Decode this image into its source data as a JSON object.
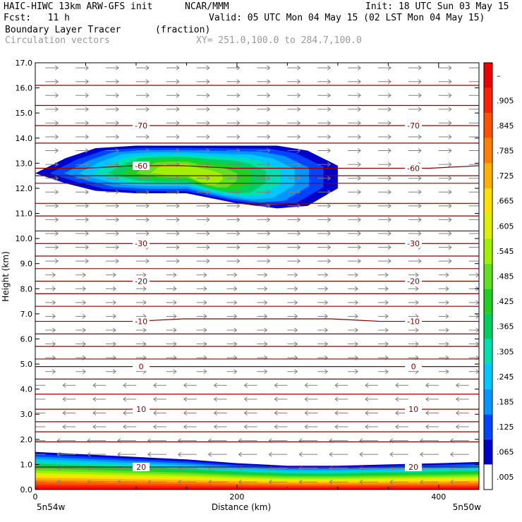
{
  "header": {
    "title_left": "HAIC-HIWC 13km ARW-GFS init",
    "org": "NCAR/MMM",
    "init": "Init: 18 UTC Sun 03 May 15",
    "fcst": "Fcst:   11 h",
    "valid": "Valid: 05 UTC Mon 04 May 15 (02 LST Mon 04 May 15)",
    "field_name": "Boundary Layer Tracer",
    "field_units": "(fraction)",
    "vector_name": "Circulation vectors",
    "xy_range": "XY= 251.0,100.0 to 284.7,100.0"
  },
  "axes": {
    "ylabel": "Height (km)",
    "xlabel": "Distance (km)",
    "left_corner": "5n54w",
    "right_corner": "5n50w"
  },
  "colors": {
    "contour_line": "#8b0000",
    "vector": "#808080"
  },
  "chart_data": {
    "type": "heatmap",
    "xlim": [
      0,
      440
    ],
    "ylim": [
      0,
      17
    ],
    "x_ticks": [
      0,
      200,
      400
    ],
    "x_tick_labels": [
      "0",
      "200",
      "400"
    ],
    "y_ticks": [
      0,
      1,
      2,
      3,
      4,
      5,
      6,
      7,
      8,
      9,
      10,
      11,
      12,
      13,
      14,
      15,
      16,
      17
    ],
    "y_tick_labels": [
      "0.0",
      "1.0",
      "2.0",
      "3.0",
      "4.0",
      "5.0",
      "6.0",
      "7.0",
      "8.0",
      "9.0",
      "10.0",
      "11.0",
      "12.0",
      "13.0",
      "14.0",
      "15.0",
      "16.0",
      "17.0"
    ],
    "colorbar": {
      "labels": [
        ".005",
        ".065",
        ".125",
        ".185",
        ".245",
        ".305",
        ".365",
        ".425",
        ".485",
        ".545",
        ".605",
        ".665",
        ".725",
        ".785",
        ".845",
        ".905",
        "–"
      ],
      "colors": [
        "#ffffff",
        "#0000cd",
        "#0044ff",
        "#0096ff",
        "#00c8ff",
        "#00e0b0",
        "#00d060",
        "#20d020",
        "#60e020",
        "#a0f000",
        "#e0f000",
        "#ffe000",
        "#ffb000",
        "#ff8000",
        "#ff5000",
        "#ff2000",
        "#ee0000"
      ]
    },
    "temperature_contours": [
      {
        "label": "-70",
        "heights": [
          14.5,
          14.5,
          14.5,
          14.5,
          14.5,
          14.5,
          14.5,
          14.5,
          14.5,
          14.5
        ]
      },
      {
        "label": "-60",
        "heights": [
          12.8,
          12.8,
          12.9,
          12.9,
          12.8,
          12.8,
          12.8,
          12.8,
          12.8,
          12.9
        ]
      },
      {
        "label": "-30",
        "heights": [
          9.8,
          9.8,
          9.8,
          9.8,
          9.8,
          9.8,
          9.8,
          9.8,
          9.8,
          9.8
        ]
      },
      {
        "label": "-20",
        "heights": [
          8.3,
          8.3,
          8.3,
          8.3,
          8.3,
          8.3,
          8.3,
          8.3,
          8.3,
          8.3
        ]
      },
      {
        "label": "-10",
        "heights": [
          6.7,
          6.7,
          6.7,
          6.8,
          6.8,
          6.8,
          6.8,
          6.7,
          6.7,
          6.7
        ]
      },
      {
        "label": "0",
        "heights": [
          4.9,
          4.9,
          4.9,
          4.9,
          4.9,
          4.9,
          4.9,
          4.9,
          4.9,
          4.9
        ]
      },
      {
        "label": "10",
        "heights": [
          3.2,
          3.2,
          3.2,
          3.2,
          3.2,
          3.2,
          3.2,
          3.2,
          3.2,
          3.2
        ]
      },
      {
        "label": "20",
        "heights": [
          0.9,
          0.9,
          0.9,
          0.9,
          0.9,
          0.9,
          0.9,
          0.9,
          0.9,
          0.9
        ]
      }
    ],
    "unlabeled_contour_heights": [
      16.1,
      15.3,
      13.8,
      12.5,
      12.2,
      11.4,
      10.9,
      10.3,
      9.3,
      8.8,
      7.8,
      7.3,
      6.2,
      5.7,
      5.2,
      4.4,
      3.8,
      2.7,
      2.3,
      1.9
    ],
    "plume_upper": {
      "x": [
        0,
        30,
        60,
        100,
        150,
        200,
        240,
        270,
        300
      ],
      "top": [
        12.6,
        13.2,
        13.6,
        13.7,
        13.7,
        13.7,
        13.7,
        13.5,
        12.9
      ],
      "bottom": [
        12.6,
        12.2,
        11.9,
        11.8,
        11.8,
        11.4,
        11.2,
        11.3,
        12.0
      ]
    },
    "boundary_layer_top": {
      "x": [
        0,
        50,
        100,
        150,
        200,
        250,
        300,
        350,
        400,
        440
      ],
      "height": [
        1.5,
        1.4,
        1.3,
        1.2,
        1.05,
        0.95,
        0.95,
        1.0,
        1.05,
        1.1
      ]
    }
  }
}
